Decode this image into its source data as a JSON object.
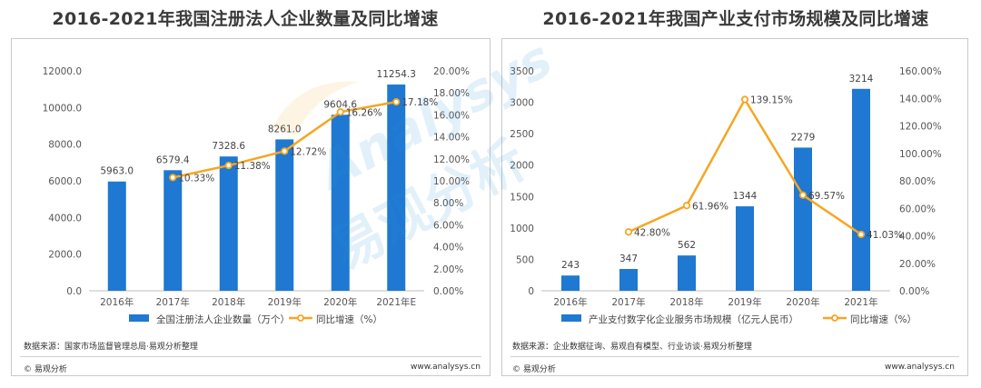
{
  "charts": [
    {
      "title": "2016-2021年我国注册法人企业数量及同比增速",
      "chart_data": {
        "type": "bar+line",
        "categories": [
          "2016年",
          "2017年",
          "2018年",
          "2019年",
          "2020年",
          "2021年E"
        ],
        "series": [
          {
            "name": "全国注册法人企业数量（万个）",
            "type": "bar",
            "axis": "left",
            "values": [
              5963.0,
              6579.4,
              7328.6,
              8261.0,
              9604.6,
              11254.3
            ],
            "labels": [
              "5963.0",
              "6579.4",
              "7328.6",
              "8261.0",
              "9604.6",
              "11254.3"
            ]
          },
          {
            "name": "同比增速（%）",
            "type": "line",
            "axis": "right",
            "values": [
              null,
              10.3,
              11.4,
              12.7,
              16.26,
              17.18
            ],
            "labels": [
              "",
              "10.33%",
              "11.38%",
              "12.72%",
              "16.26%",
              "17.18%"
            ]
          }
        ],
        "ylim_left": [
          0,
          12000
        ],
        "yticks_left": [
          "0.0",
          "2000.0",
          "4000.0",
          "6000.0",
          "8000.0",
          "10000.0",
          "12000.0"
        ],
        "ylim_right": [
          0,
          20
        ],
        "yticks_right": [
          "0.00%",
          "2.00%",
          "4.00%",
          "6.00%",
          "8.00%",
          "10.00%",
          "12.00%",
          "14.00%",
          "16.00%",
          "18.00%",
          "20.00%"
        ],
        "legend": "bottom",
        "grid": false
      },
      "source": "数据来源：国家市场监督管理总局·易观分析整理",
      "copyright": "© 易观分析",
      "url": "www.analysys.cn"
    },
    {
      "title": "2016-2021年我国产业支付市场规模及同比增速",
      "chart_data": {
        "type": "bar+line",
        "categories": [
          "2016年",
          "2017年",
          "2018年",
          "2019年",
          "2020年",
          "2021年"
        ],
        "series": [
          {
            "name": "产业支付数字化企业服务市场规模（亿元人民币）",
            "type": "bar",
            "axis": "left",
            "values": [
              243,
              347,
              562,
              1344,
              2279,
              3214
            ],
            "labels": [
              "243",
              "347",
              "562",
              "1344",
              "2279",
              "3214"
            ]
          },
          {
            "name": "同比增速（%）",
            "type": "line",
            "axis": "right",
            "values": [
              null,
              42.8,
              61.96,
              139.15,
              69.57,
              41.03
            ],
            "labels": [
              "",
              "42.80%",
              "61.96%",
              "139.15%",
              "69.57%",
              "41.03%"
            ]
          }
        ],
        "ylim_left": [
          0,
          3500
        ],
        "yticks_left": [
          "0",
          "500",
          "1000",
          "1500",
          "2000",
          "2500",
          "3000",
          "3500"
        ],
        "ylim_right": [
          0,
          160
        ],
        "yticks_right": [
          "0.00%",
          "20.00%",
          "40.00%",
          "60.00%",
          "80.00%",
          "100.00%",
          "120.00%",
          "140.00%",
          "160.00%"
        ],
        "legend": "bottom",
        "grid": false
      },
      "source": "数据来源：企业数据征询、易观自有模型、行业访谈·易观分析整理",
      "copyright": "© 易观分析",
      "url": "www.analysys.cn"
    }
  ],
  "colors": {
    "bar": "#1f78d1",
    "line": "#f5a623",
    "marker_fill": "#ffffff"
  },
  "watermark": {
    "text_en": "Analysys",
    "text_cn": "易观分析"
  }
}
